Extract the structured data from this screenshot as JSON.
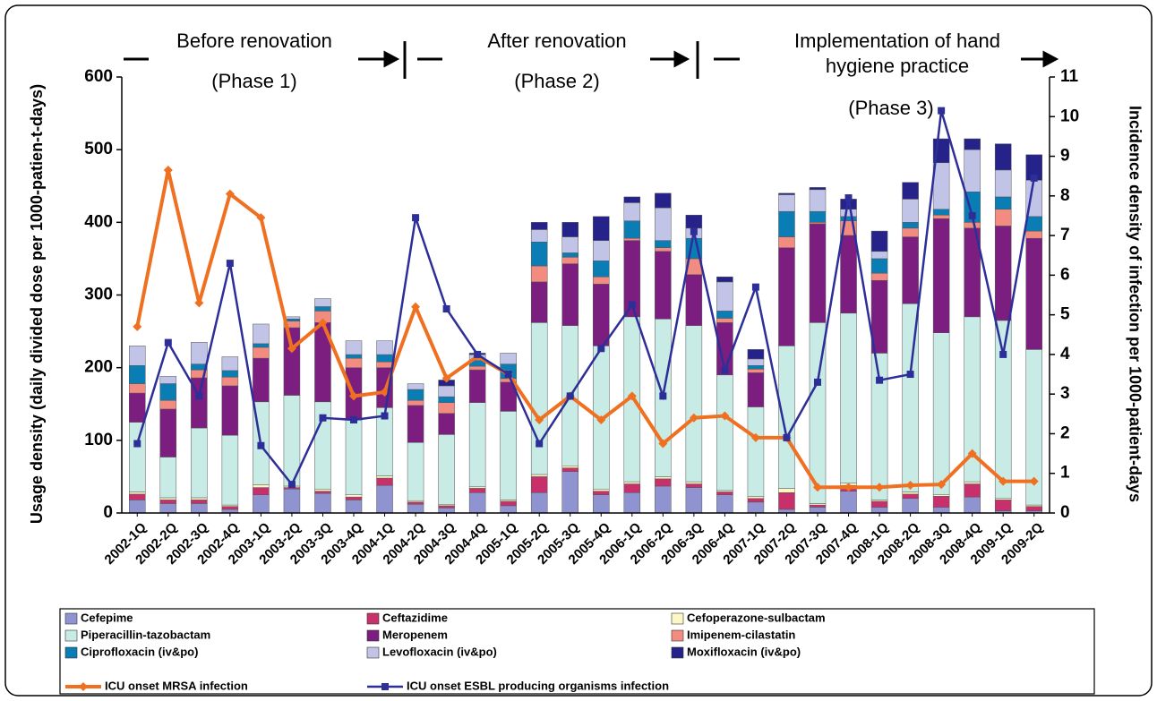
{
  "chart_data": {
    "type": "bar",
    "stacked": true,
    "annotations": [
      "Before renovation",
      "(Phase 1)",
      "After renovation",
      "(Phase 2)",
      "Implementation of hand",
      "hygiene practice",
      "(Phase 3)"
    ],
    "ylabel": "Usage density (daily divided dose per 1000-patien-t-days)",
    "y2label": "Incidence density of infection per 1000-patient-days",
    "categories": [
      "2002-1Q",
      "2002-2Q",
      "2002-3Q",
      "2002-4Q",
      "2003-1Q",
      "2003-2Q",
      "2003-3Q",
      "2003-4Q",
      "2004-1Q",
      "2004-2Q",
      "2004-3Q",
      "2004-4Q",
      "2005-1Q",
      "2005-2Q",
      "2005-3Q",
      "2005-4Q",
      "2006-1Q",
      "2006-2Q",
      "2006-3Q",
      "2006-4Q",
      "2007-1Q",
      "2007-2Q",
      "2007-3Q",
      "2007-4Q",
      "2008-1Q",
      "2008-2Q",
      "2008-3Q",
      "2008-4Q",
      "2009-1Q",
      "2009-2Q"
    ],
    "ylim": [
      0,
      600
    ],
    "yticks": [
      0,
      100,
      200,
      300,
      400,
      500,
      600
    ],
    "y2lim": [
      0,
      11
    ],
    "y2ticks": [
      0,
      1,
      2,
      3,
      4,
      5,
      6,
      7,
      8,
      9,
      10,
      11
    ],
    "series": [
      {
        "name": "Cefepime",
        "color": "#8f93cf",
        "values": [
          18,
          13,
          13,
          5,
          25,
          33,
          27,
          18,
          38,
          12,
          7,
          28,
          10,
          28,
          57,
          25,
          28,
          37,
          35,
          25,
          15,
          5,
          8,
          30,
          8,
          20,
          8,
          22,
          3,
          3
        ]
      },
      {
        "name": "Ceftazidime",
        "color": "#c8306c",
        "values": [
          8,
          5,
          5,
          4,
          10,
          2,
          3,
          4,
          10,
          3,
          3,
          6,
          6,
          22,
          5,
          5,
          12,
          10,
          5,
          4,
          5,
          23,
          3,
          8,
          8,
          6,
          15,
          18,
          15,
          6
        ]
      },
      {
        "name": "Cefoperazone-sulbactam",
        "color": "#fdf7c5",
        "values": [
          3,
          3,
          3,
          2,
          4,
          2,
          3,
          3,
          3,
          2,
          2,
          2,
          2,
          3,
          3,
          3,
          3,
          3,
          3,
          2,
          3,
          6,
          2,
          3,
          2,
          3,
          2,
          3,
          2,
          2
        ]
      },
      {
        "name": "Piperacillin-tazobactam",
        "color": "#c8ebe6",
        "values": [
          96,
          56,
          96,
          96,
          114,
          125,
          120,
          103,
          94,
          80,
          96,
          116,
          122,
          209,
          193,
          197,
          227,
          217,
          215,
          159,
          123,
          196,
          249,
          234,
          202,
          259,
          223,
          227,
          245,
          214
        ]
      },
      {
        "name": "Meropenem",
        "color": "#7b1e7f",
        "values": [
          40,
          66,
          69,
          68,
          60,
          93,
          109,
          72,
          55,
          51,
          29,
          45,
          40,
          56,
          85,
          85,
          105,
          93,
          70,
          72,
          47,
          135,
          136,
          107,
          100,
          92,
          157,
          122,
          130,
          153
        ]
      },
      {
        "name": "Imipenem-cilastatin",
        "color": "#f28b80",
        "values": [
          13,
          12,
          11,
          12,
          15,
          9,
          16,
          13,
          8,
          7,
          15,
          5,
          5,
          22,
          9,
          10,
          3,
          5,
          22,
          6,
          5,
          15,
          2,
          20,
          10,
          12,
          5,
          8,
          23,
          10
        ]
      },
      {
        "name": "Ciprofloxacin (iv&po)",
        "color": "#0a7db5",
        "values": [
          25,
          23,
          8,
          9,
          5,
          3,
          6,
          5,
          10,
          15,
          8,
          8,
          20,
          33,
          6,
          22,
          24,
          10,
          28,
          10,
          5,
          35,
          15,
          6,
          20,
          8,
          8,
          42,
          17,
          20
        ]
      },
      {
        "name": "Levofloxacin (iv&po)",
        "color": "#c1c4e6",
        "values": [
          27,
          10,
          30,
          19,
          27,
          3,
          11,
          19,
          19,
          8,
          15,
          8,
          15,
          17,
          22,
          28,
          25,
          45,
          14,
          40,
          9,
          23,
          30,
          10,
          10,
          32,
          64,
          58,
          37,
          50
        ]
      },
      {
        "name": "Moxifloxacin (iv&po)",
        "color": "#25238a",
        "values": [
          0,
          0,
          0,
          0,
          0,
          0,
          0,
          0,
          0,
          0,
          8,
          2,
          0,
          10,
          20,
          33,
          8,
          20,
          18,
          7,
          13,
          2,
          3,
          14,
          28,
          23,
          33,
          15,
          36,
          35
        ]
      },
      {
        "name": "ICU onset MRSA infection",
        "type": "line",
        "axis": "y2",
        "marker": "diamond",
        "color": "#f07022",
        "values": [
          4.7,
          8.65,
          5.3,
          8.05,
          7.45,
          4.15,
          4.8,
          2.95,
          3.05,
          5.2,
          3.4,
          3.95,
          3.5,
          2.35,
          2.95,
          2.35,
          2.95,
          1.75,
          2.4,
          2.45,
          1.9,
          1.9,
          0.65,
          0.65,
          0.65,
          0.7,
          0.72,
          1.5,
          0.8,
          0.8
        ]
      },
      {
        "name": "ICU onset ESBL producing organisms infection",
        "type": "line",
        "axis": "y2",
        "marker": "square",
        "color": "#2e2e99",
        "values": [
          1.75,
          4.3,
          2.95,
          6.3,
          1.7,
          0.72,
          2.4,
          2.35,
          2.45,
          7.45,
          5.15,
          4.0,
          3.5,
          1.75,
          2.95,
          4.15,
          5.25,
          2.95,
          7.1,
          3.6,
          5.7,
          1.9,
          3.3,
          7.95,
          3.35,
          3.5,
          10.15,
          7.5,
          4.0,
          8.45
        ]
      }
    ]
  }
}
